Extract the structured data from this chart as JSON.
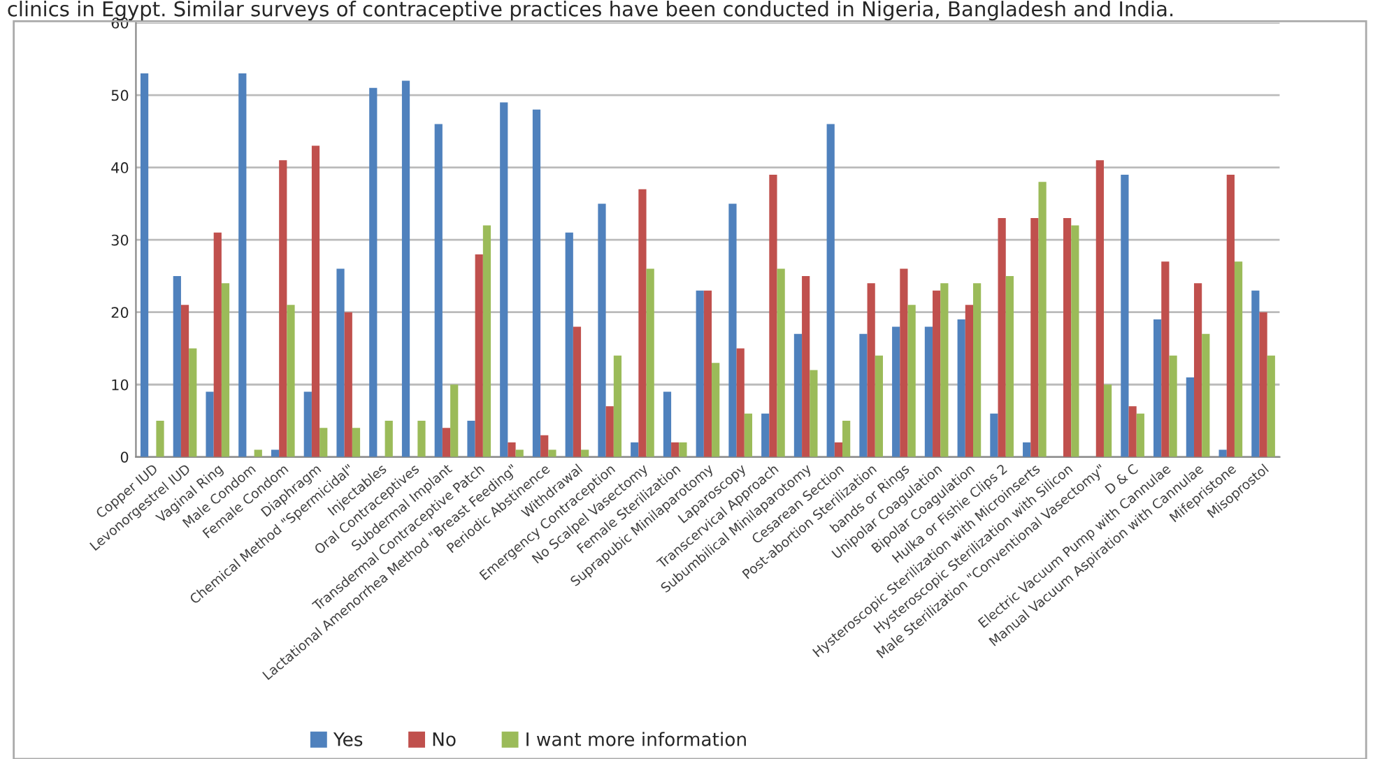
{
  "chart_data": {
    "type": "bar",
    "title": "clinics in Egypt. Similar surveys of contraceptive practices have been conducted in Nigeria, Bangladesh and India.",
    "categories": [
      "Copper IUD",
      "Levonorgestrel IUD",
      "Vaginal Ring",
      "Male Condom",
      "Female Condom",
      "Diaphragm",
      "Chemical Method \"Spermicidal\"",
      "Injectables",
      "Oral Contraceptives",
      "Subdermal Implant",
      "Transdermal Contraceptive Patch",
      "Lactational Amenorrhea Method \"Breast Feeding\"",
      "Periodic Abstinence",
      "Withdrawal",
      "Emergency Contraception",
      "No Scalpel Vasectomy",
      "Female Sterilization",
      "Suprapubic Minilaparotomy",
      "Laparoscopy",
      "Transcervical Approach",
      "Subumbilical Minilaparotomy",
      "Cesarean Section",
      "Post-abortion Sterilization",
      "bands or Rings",
      "Unipolar Coagulation",
      "Bipolar Coagulation",
      "Hulka or Fishie Clips 2",
      "Hysteroscopic Sterilization with Microinserts",
      "Hysteroscopic Sterilization with Silicon",
      "Male Sterilization \"Conventional Vasectomy\"",
      "D & C",
      "Electric Vacuum Pump with Cannulae",
      "Manual Vacuum Aspiration with Cannulae",
      "Mifepristone",
      "Misoprostol"
    ],
    "series": [
      {
        "name": "Yes",
        "color": "#4f81bd",
        "values": [
          53,
          25,
          9,
          53,
          1,
          9,
          26,
          51,
          52,
          46,
          5,
          49,
          48,
          31,
          35,
          2,
          9,
          23,
          35,
          6,
          17,
          46,
          17,
          18,
          18,
          19,
          6,
          2,
          0,
          0,
          39,
          19,
          11,
          1,
          23
        ]
      },
      {
        "name": "No",
        "color": "#c0504d",
        "values": [
          0,
          21,
          31,
          0,
          41,
          43,
          20,
          0,
          0,
          4,
          28,
          2,
          3,
          18,
          7,
          37,
          2,
          23,
          15,
          39,
          25,
          2,
          24,
          26,
          23,
          21,
          33,
          33,
          33,
          41,
          7,
          27,
          24,
          39,
          20
        ]
      },
      {
        "name": "I want more information",
        "color": "#9bbb59",
        "values": [
          5,
          15,
          24,
          1,
          21,
          4,
          4,
          5,
          5,
          10,
          32,
          1,
          1,
          1,
          14,
          26,
          2,
          13,
          6,
          26,
          12,
          5,
          14,
          21,
          24,
          24,
          25,
          38,
          32,
          10,
          6,
          14,
          17,
          27,
          14
        ]
      }
    ],
    "ylim": [
      0,
      60
    ],
    "yticks": [
      0,
      10,
      20,
      30,
      40,
      50,
      60
    ],
    "grid": "y",
    "legend": "bottom"
  }
}
